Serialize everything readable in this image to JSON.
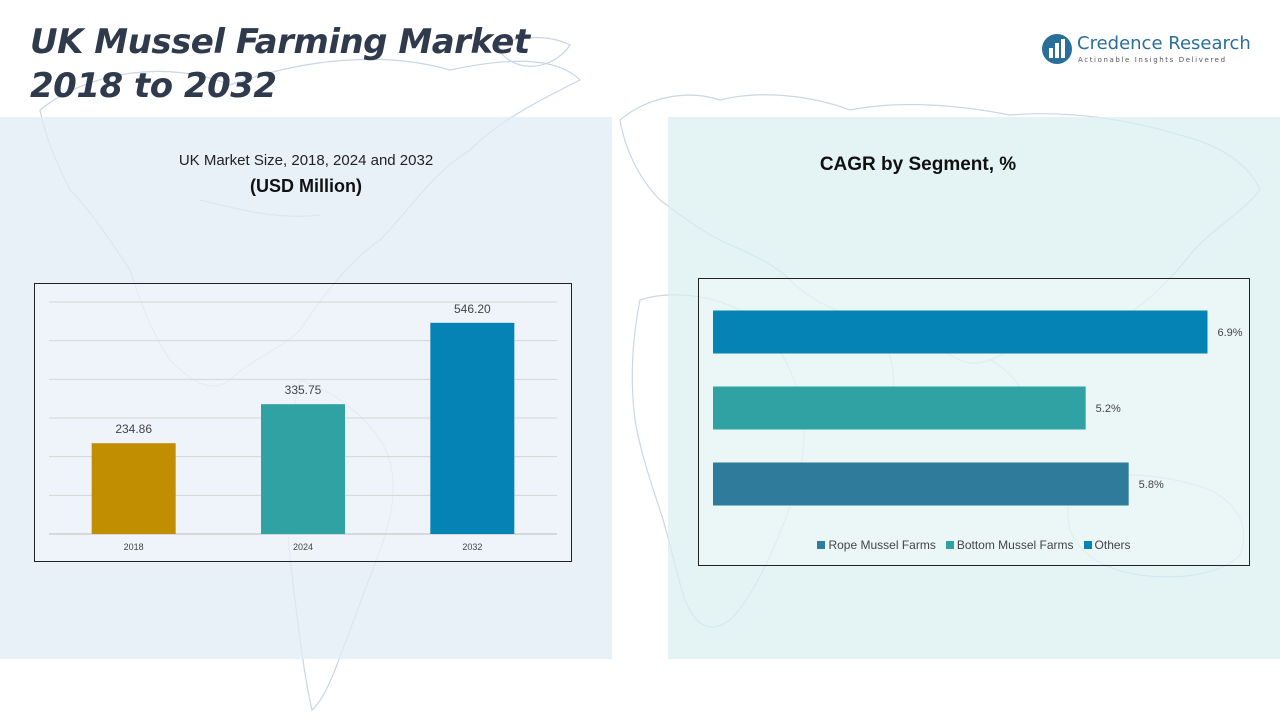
{
  "page": {
    "title_line1": "UK Mussel Farming Market",
    "title_line2": "2018 to 2032"
  },
  "logo": {
    "name": "Credence Research",
    "tagline": "Actionable Insights Delivered",
    "icon": "bar-chart-circle-icon",
    "color": "#2a6f9a"
  },
  "left_panel": {
    "title": "UK Market Size, 2018, 2024 and 2032",
    "unit": "(USD Million)"
  },
  "right_panel": {
    "title": "CAGR by Segment, %"
  },
  "chart_data": [
    {
      "type": "bar",
      "title": "UK Market Size, 2018, 2024 and 2032",
      "subtitle": "(USD Million)",
      "categories": [
        "2018",
        "2024",
        "2032"
      ],
      "values": [
        234.86,
        335.75,
        546.2
      ],
      "value_labels": [
        "234.86",
        "335.75",
        "546.20"
      ],
      "colors": [
        "#c08e00",
        "#30a2a4",
        "#0683b5"
      ],
      "ylim": [
        0,
        600
      ],
      "grid": true,
      "xlabel": "",
      "ylabel": ""
    },
    {
      "type": "bar",
      "orientation": "horizontal",
      "title": "CAGR by Segment, %",
      "categories": [
        "Others",
        "Bottom Mussel Farms",
        "Rope Mussel Farms"
      ],
      "values": [
        6.9,
        5.2,
        5.8
      ],
      "value_labels": [
        "6.9%",
        "5.2%",
        "5.8%"
      ],
      "colors": [
        "#0683b5",
        "#30a2a4",
        "#2f7b9c"
      ],
      "xlim": [
        0,
        7.2
      ],
      "grid": false,
      "legend": {
        "position": "bottom",
        "entries": [
          {
            "name": "Rope Mussel Farms",
            "color": "#2f7b9c"
          },
          {
            "name": "Bottom Mussel Farms",
            "color": "#30a2a4"
          },
          {
            "name": "Others",
            "color": "#0683b5"
          }
        ]
      }
    }
  ]
}
